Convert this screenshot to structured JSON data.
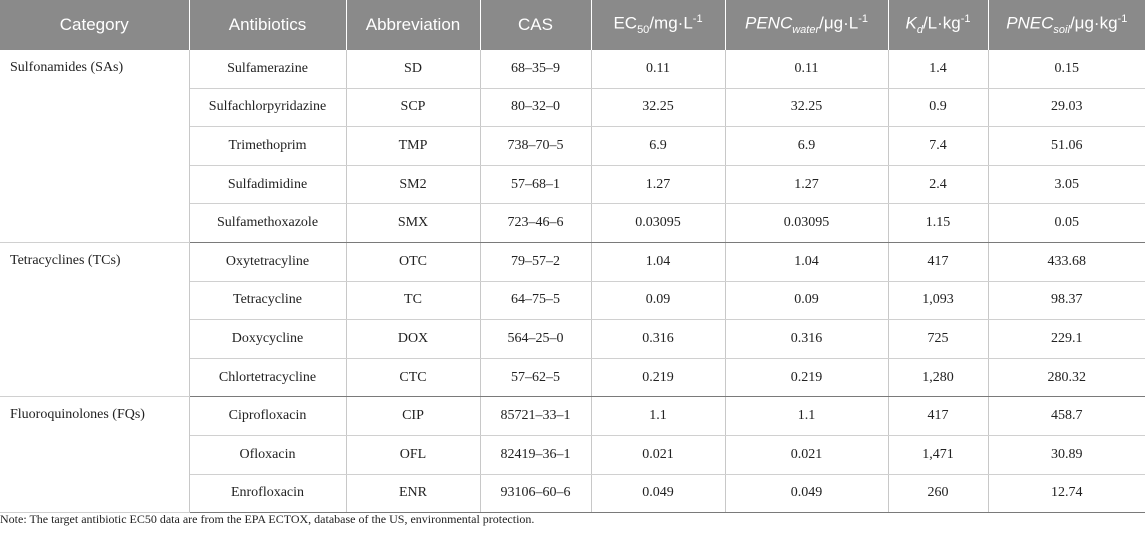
{
  "headers": {
    "category": "Category",
    "antibiotics": "Antibiotics",
    "abbreviation": "Abbreviation",
    "cas": "CAS",
    "ec50": {
      "a": "EC",
      "sub": "50",
      "b": "/mg·L",
      "sup": "-1"
    },
    "pencwater": {
      "a": "PENC",
      "sub": "water",
      "b": "/μg·L",
      "sup": "-1"
    },
    "kd": {
      "a": "K",
      "sub": "d",
      "b": "/L·kg",
      "sup": "-1"
    },
    "pnecsoil": {
      "a": "PNEC",
      "sub": "soil",
      "b": "/μg·kg",
      "sup": "-1"
    }
  },
  "groups": [
    {
      "category": "Sulfonamides (SAs)",
      "rows": [
        {
          "name": "Sulfamerazine",
          "abbr": "SD",
          "cas": "68–35–9",
          "ec50": "0.11",
          "penc": "0.11",
          "kd": "1.4",
          "pnec": "0.15"
        },
        {
          "name": "Sulfachlorpyridazine",
          "abbr": "SCP",
          "cas": "80–32–0",
          "ec50": "32.25",
          "penc": "32.25",
          "kd": "0.9",
          "pnec": "29.03"
        },
        {
          "name": "Trimethoprim",
          "abbr": "TMP",
          "cas": "738–70–5",
          "ec50": "6.9",
          "penc": "6.9",
          "kd": "7.4",
          "pnec": "51.06"
        },
        {
          "name": "Sulfadimidine",
          "abbr": "SM2",
          "cas": "57–68–1",
          "ec50": "1.27",
          "penc": "1.27",
          "kd": "2.4",
          "pnec": "3.05"
        },
        {
          "name": "Sulfamethoxazole",
          "abbr": "SMX",
          "cas": "723–46–6",
          "ec50": "0.03095",
          "penc": "0.03095",
          "kd": "1.15",
          "pnec": "0.05"
        }
      ]
    },
    {
      "category": "Tetracyclines (TCs)",
      "rows": [
        {
          "name": "Oxytetracyline",
          "abbr": "OTC",
          "cas": "79–57–2",
          "ec50": "1.04",
          "penc": "1.04",
          "kd": "417",
          "pnec": "433.68"
        },
        {
          "name": "Tetracycline",
          "abbr": "TC",
          "cas": "64–75–5",
          "ec50": "0.09",
          "penc": "0.09",
          "kd": "1,093",
          "pnec": "98.37"
        },
        {
          "name": "Doxycycline",
          "abbr": "DOX",
          "cas": "564–25–0",
          "ec50": "0.316",
          "penc": "0.316",
          "kd": "725",
          "pnec": "229.1"
        },
        {
          "name": "Chlortetracycline",
          "abbr": "CTC",
          "cas": "57–62–5",
          "ec50": "0.219",
          "penc": "0.219",
          "kd": "1,280",
          "pnec": "280.32"
        }
      ]
    },
    {
      "category": "Fluoroquinolones (FQs)",
      "rows": [
        {
          "name": "Ciprofloxacin",
          "abbr": "CIP",
          "cas": "85721–33–1",
          "ec50": "1.1",
          "penc": "1.1",
          "kd": "417",
          "pnec": "458.7"
        },
        {
          "name": "Ofloxacin",
          "abbr": "OFL",
          "cas": "82419–36–1",
          "ec50": "0.021",
          "penc": "0.021",
          "kd": "1,471",
          "pnec": "30.89"
        },
        {
          "name": "Enrofloxacin",
          "abbr": "ENR",
          "cas": "93106–60–6",
          "ec50": "0.049",
          "penc": "0.049",
          "kd": "260",
          "pnec": "12.74"
        }
      ]
    }
  ],
  "note": "Note: The target antibiotic EC50 data are from the EPA ECTOX, database of the US, environmental protection."
}
